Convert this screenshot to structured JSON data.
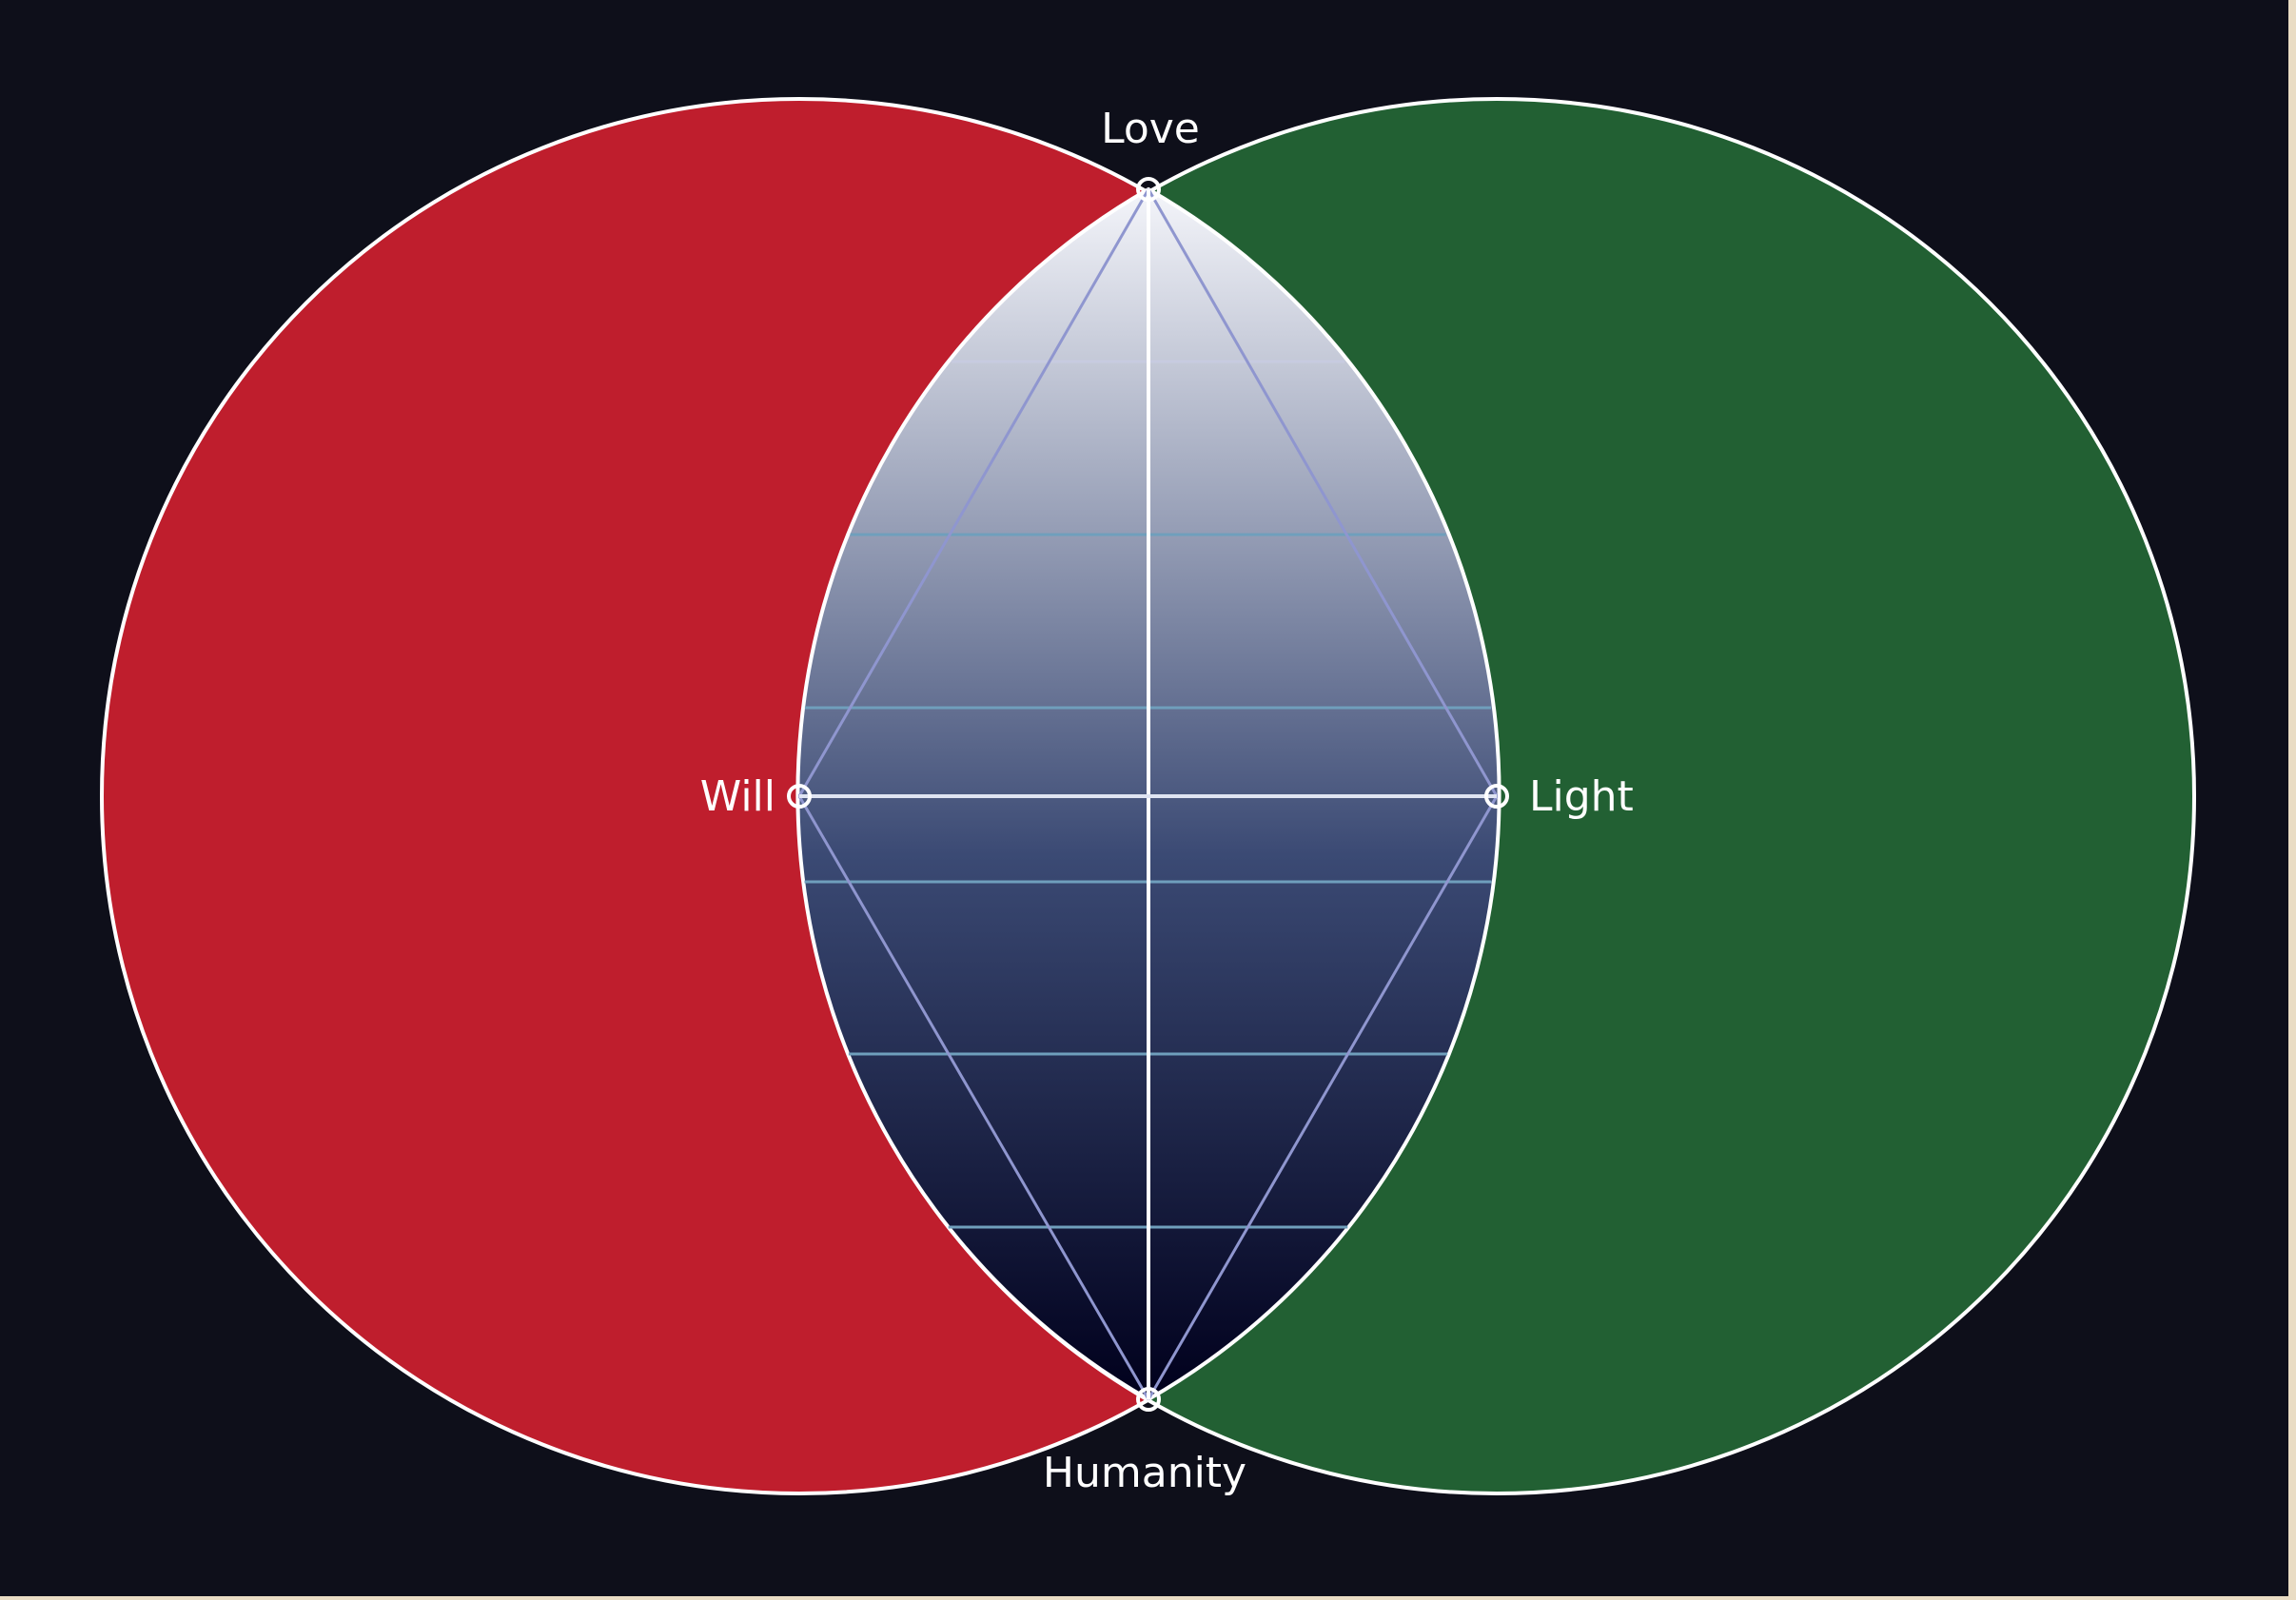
{
  "diagram": {
    "nodes": {
      "top": "Love",
      "left": "Will",
      "right": "Light",
      "bottom": "Humanity"
    },
    "colors": {
      "background": "#0e0f1a",
      "left_circle": "#bf1e2d",
      "right_circle": "#226033",
      "outline": "#ffffff",
      "gradient_top": "#f4f5fa",
      "gradient_bottom": "#00001c",
      "web_lines": "#8f96cf",
      "horizontal_lines": "#6f9fbc",
      "axis_lines": "#ffffff"
    }
  }
}
